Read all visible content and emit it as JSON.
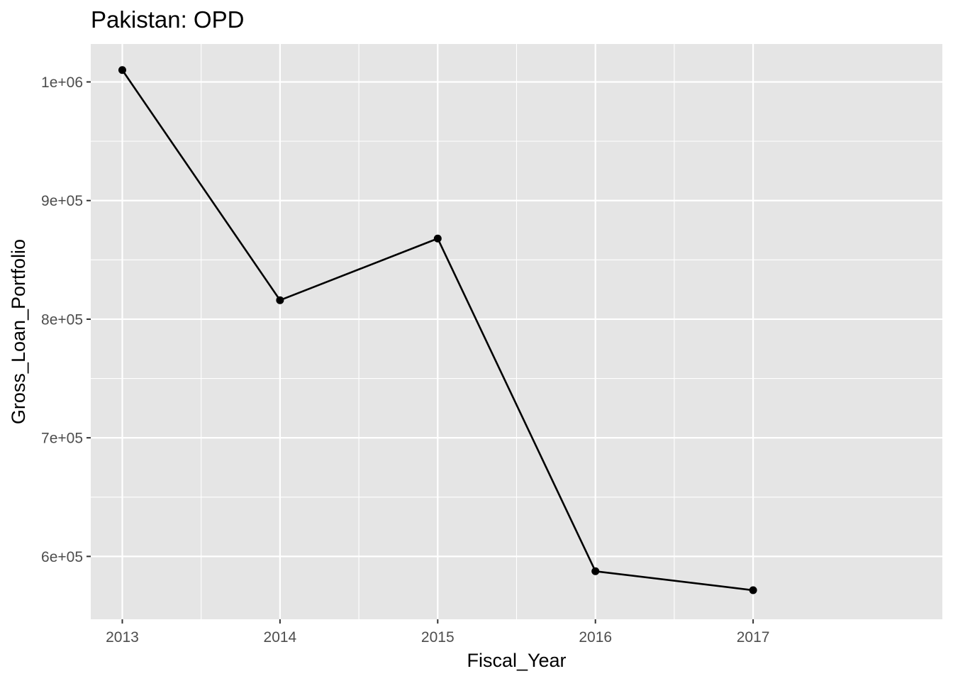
{
  "chart_data": {
    "type": "line",
    "title": "Pakistan:  OPD",
    "xlabel": "Fiscal_Year",
    "ylabel": "Gross_Loan_Portfolio",
    "x": [
      2013,
      2014,
      2015,
      2016,
      2017
    ],
    "series": [
      {
        "values": [
          1010000,
          816000,
          868000,
          587500,
          571500
        ]
      }
    ],
    "xlim": [
      2012.8,
      2018.2
    ],
    "ylim": [
      547000,
      1032000
    ],
    "x_ticks": [
      {
        "value": 2013,
        "label": "2013"
      },
      {
        "value": 2014,
        "label": "2014"
      },
      {
        "value": 2015,
        "label": "2015"
      },
      {
        "value": 2016,
        "label": "2016"
      },
      {
        "value": 2017,
        "label": "2017"
      }
    ],
    "y_ticks": [
      {
        "value": 600000,
        "label": "6e+05"
      },
      {
        "value": 700000,
        "label": "7e+05"
      },
      {
        "value": 800000,
        "label": "8e+05"
      },
      {
        "value": 900000,
        "label": "9e+05"
      },
      {
        "value": 1000000,
        "label": "1e+06"
      }
    ],
    "x_minor": [
      2013.5,
      2014.5,
      2015.5,
      2016.5
    ],
    "y_minor": [
      650000,
      750000,
      850000,
      950000
    ],
    "grid": true,
    "colors": {
      "panel": "#e5e5e5",
      "grid": "#ffffff",
      "line": "#000000",
      "point": "#000000",
      "tick_text": "#4d4d4d",
      "tick_mark": "#333333"
    }
  }
}
